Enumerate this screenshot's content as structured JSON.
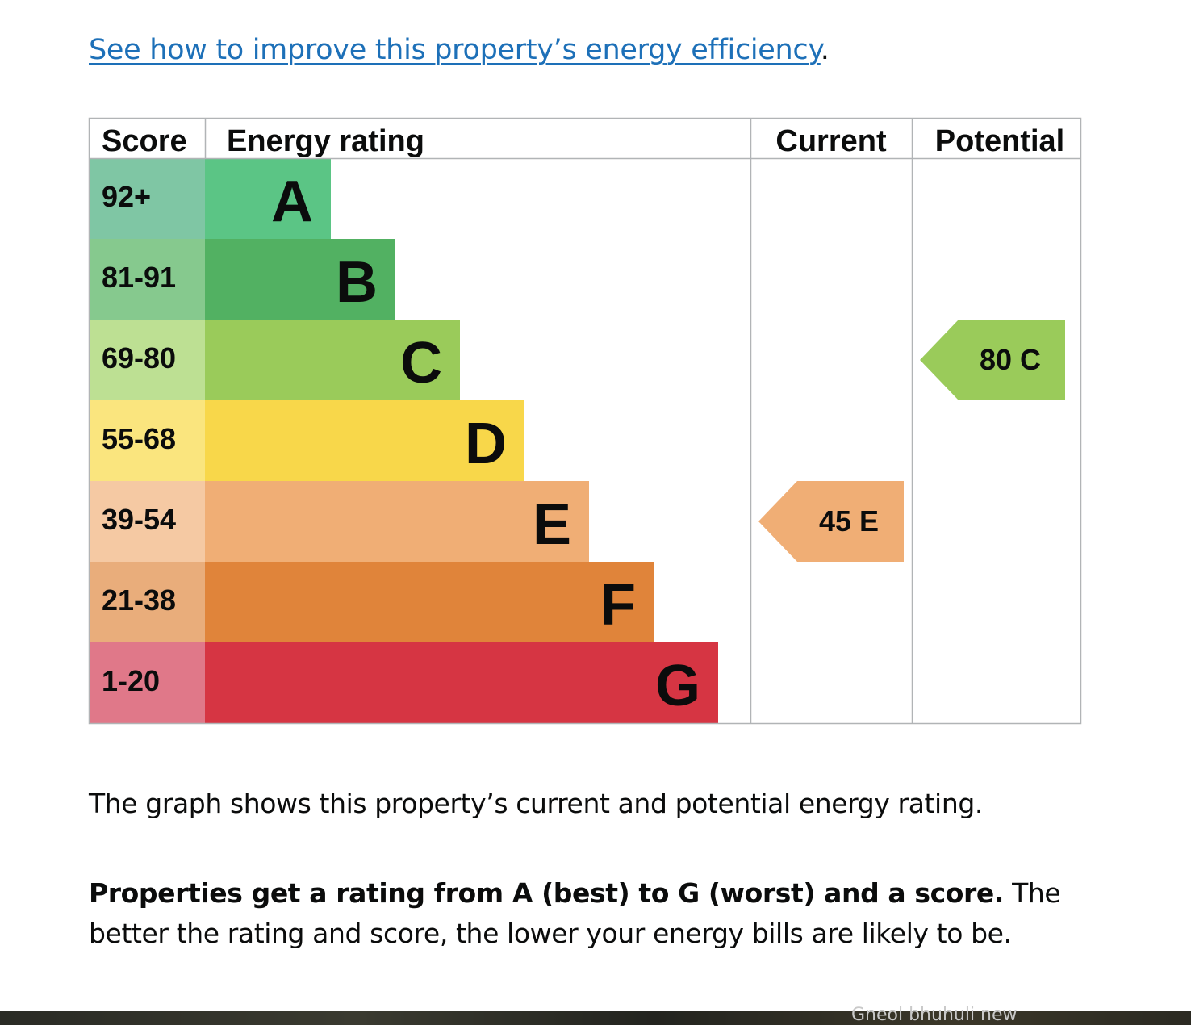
{
  "link": {
    "text": "See how to improve this property’s energy efficiency",
    "suffix": "."
  },
  "chart_data": {
    "type": "bar",
    "headers": {
      "score": "Score",
      "rating": "Energy rating",
      "current": "Current",
      "potential": "Potential"
    },
    "bands": [
      {
        "letter": "A",
        "range": "92+",
        "color": "#5bc585",
        "range_bg": "#7fc6a4"
      },
      {
        "letter": "B",
        "range": "81-91",
        "color": "#52b162",
        "range_bg": "#86c98e"
      },
      {
        "letter": "C",
        "range": "69-80",
        "color": "#9acb5a",
        "range_bg": "#bde093"
      },
      {
        "letter": "D",
        "range": "55-68",
        "color": "#f8d74a",
        "range_bg": "#fae57e"
      },
      {
        "letter": "E",
        "range": "39-54",
        "color": "#f0ae75",
        "range_bg": "#f5c9a3"
      },
      {
        "letter": "F",
        "range": "21-38",
        "color": "#e0843a",
        "range_bg": "#e9ad7b"
      },
      {
        "letter": "G",
        "range": "1-20",
        "color": "#d63543",
        "range_bg": "#e07889"
      }
    ],
    "current": {
      "score": 45,
      "band": "E",
      "label": "45  E",
      "color": "#f0ae75"
    },
    "potential": {
      "score": 80,
      "band": "C",
      "label": "80  C",
      "color": "#9acb5a"
    }
  },
  "text": {
    "graph_caption": "The graph shows this property’s current and potential energy rating.",
    "ratings_bold": "Properties get a rating from A (best) to G (worst) and a score.",
    "ratings_rest": " The better the rating and score, the lower your energy bills are likely to be."
  },
  "footer": {
    "overlay_text": "Gneol bhuhuli new"
  }
}
